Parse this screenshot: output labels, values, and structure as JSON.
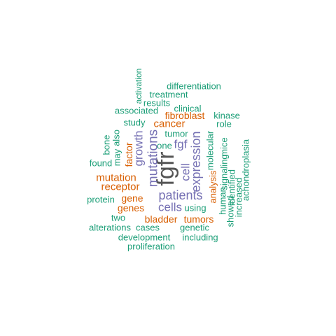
{
  "colors": {
    "gray": "#555555",
    "purple": "#7570b3",
    "orange": "#d95f02",
    "green": "#1b9e77"
  },
  "words": [
    {
      "text": "fgfr",
      "color": "gray"
    },
    {
      "text": "mutations",
      "color": "purple"
    },
    {
      "text": "expression",
      "color": "purple"
    },
    {
      "text": "patients",
      "color": "purple"
    },
    {
      "text": "growth",
      "color": "purple"
    },
    {
      "text": "cells",
      "color": "purple"
    },
    {
      "text": "cell",
      "color": "purple"
    },
    {
      "text": "fgf",
      "color": "purple"
    },
    {
      "text": "cancer",
      "color": "orange"
    },
    {
      "text": "mutation",
      "color": "orange"
    },
    {
      "text": "receptor",
      "color": "orange"
    },
    {
      "text": "gene",
      "color": "orange"
    },
    {
      "text": "genes",
      "color": "orange"
    },
    {
      "text": "factor",
      "color": "orange"
    },
    {
      "text": "fibroblast",
      "color": "orange"
    },
    {
      "text": "analysis",
      "color": "orange"
    },
    {
      "text": "bladder",
      "color": "orange"
    },
    {
      "text": "tumors",
      "color": "orange"
    },
    {
      "text": "differentiation",
      "color": "green"
    },
    {
      "text": "activation",
      "color": "green"
    },
    {
      "text": "treatment",
      "color": "green"
    },
    {
      "text": "results",
      "color": "green"
    },
    {
      "text": "clinical",
      "color": "green"
    },
    {
      "text": "associated",
      "color": "green"
    },
    {
      "text": "kinase",
      "color": "green"
    },
    {
      "text": "study",
      "color": "green"
    },
    {
      "text": "role",
      "color": "green"
    },
    {
      "text": "tumor",
      "color": "green"
    },
    {
      "text": "one",
      "color": "green"
    },
    {
      "text": "bone",
      "color": "green"
    },
    {
      "text": "also",
      "color": "green"
    },
    {
      "text": "may",
      "color": "green"
    },
    {
      "text": "found",
      "color": "green"
    },
    {
      "text": "molecular",
      "color": "green"
    },
    {
      "text": "mice",
      "color": "green"
    },
    {
      "text": "achondroplasia",
      "color": "green"
    },
    {
      "text": "signaling",
      "color": "green"
    },
    {
      "text": "identified",
      "color": "green"
    },
    {
      "text": "human",
      "color": "green"
    },
    {
      "text": "increased",
      "color": "green"
    },
    {
      "text": "showed",
      "color": "green"
    },
    {
      "text": "protein",
      "color": "green"
    },
    {
      "text": "using",
      "color": "green"
    },
    {
      "text": "two",
      "color": "green"
    },
    {
      "text": "alterations",
      "color": "green"
    },
    {
      "text": "cases",
      "color": "green"
    },
    {
      "text": "genetic",
      "color": "green"
    },
    {
      "text": "development",
      "color": "green"
    },
    {
      "text": "including",
      "color": "green"
    },
    {
      "text": "proliferation",
      "color": "green"
    }
  ]
}
